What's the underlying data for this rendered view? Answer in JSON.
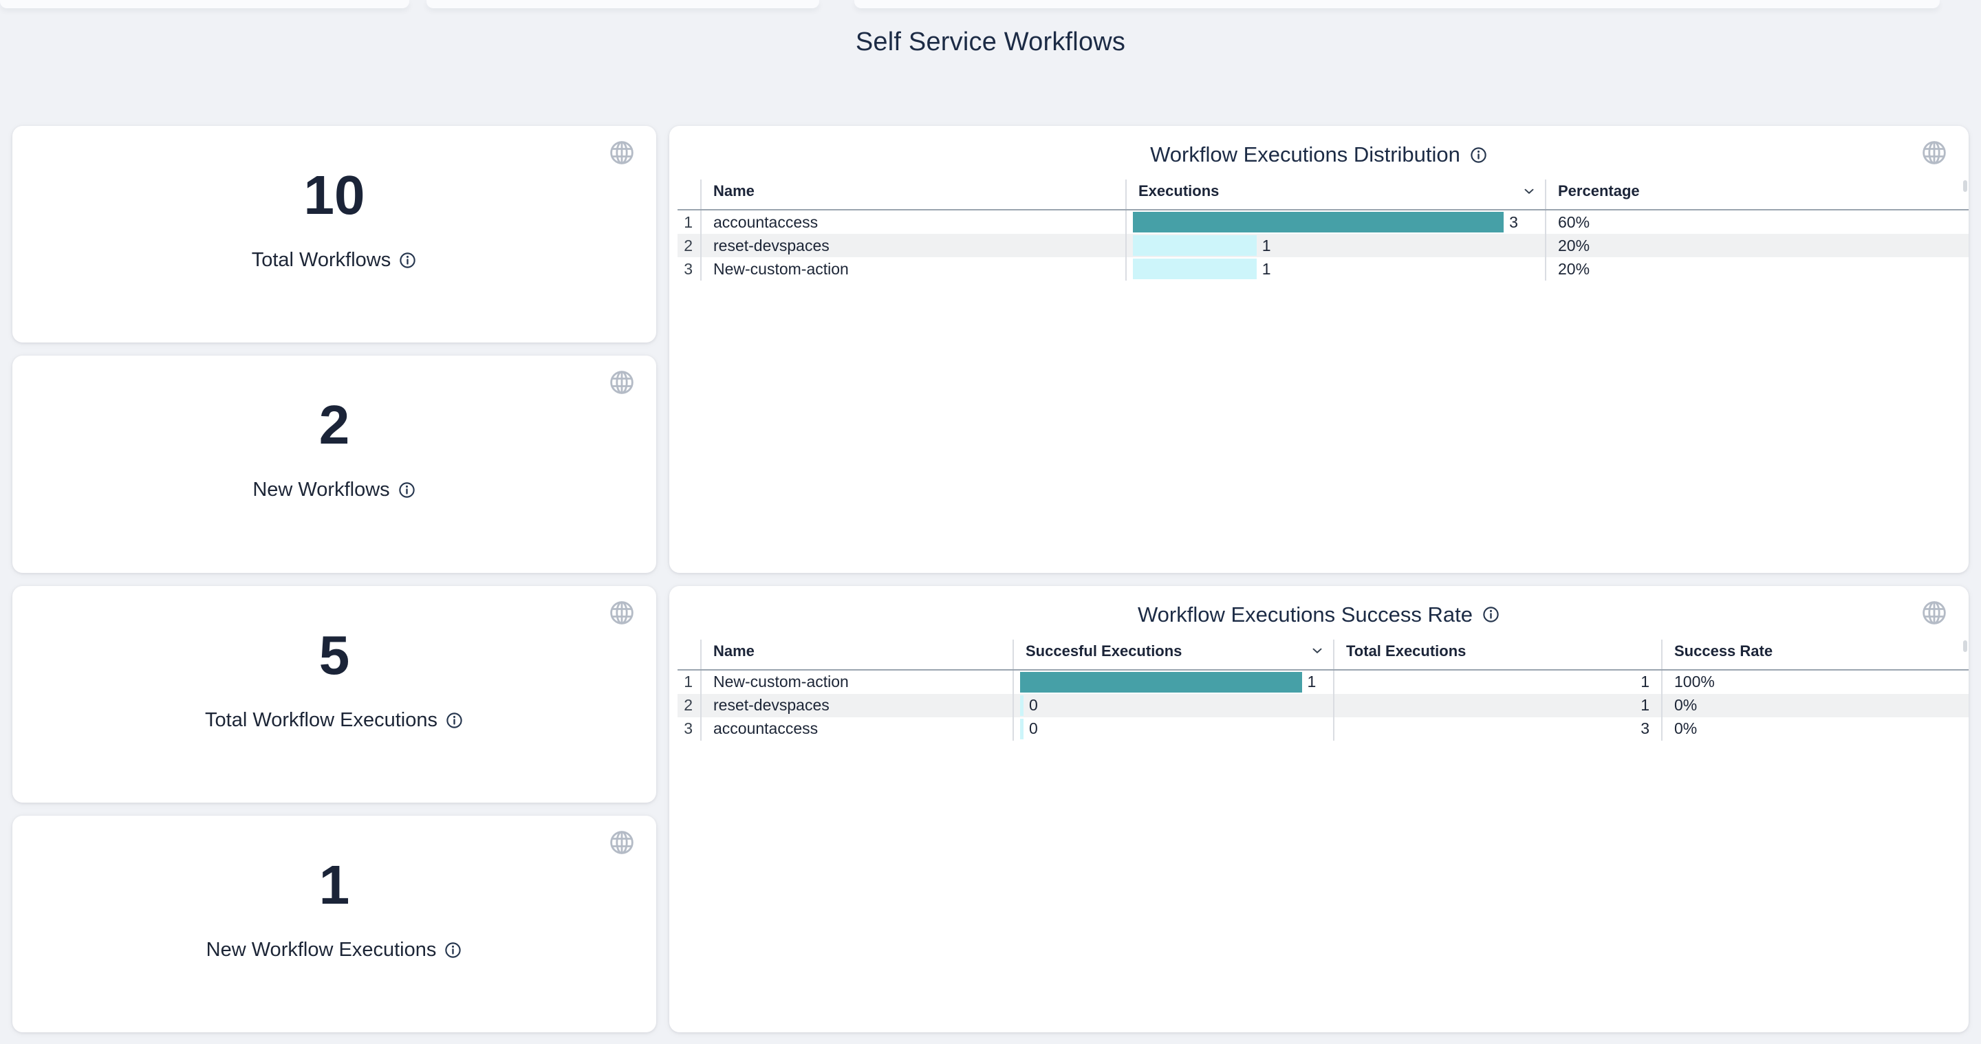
{
  "page": {
    "title": "Self Service Workflows"
  },
  "colors": {
    "teal": "#46A0A7",
    "light_cyan": "#CDF5FA",
    "navy": "#1C2536",
    "page_bg": "#F0F2F6",
    "zebra_row": "#F0F1F2",
    "header_rule": "#9AA4AF"
  },
  "icons": {
    "globe": "wireframe-globe",
    "info": "circled-i",
    "sort": "chevron-down"
  },
  "stat_cards": [
    {
      "value": "10",
      "label": "Total Workflows"
    },
    {
      "value": "2",
      "label": "New Workflows"
    },
    {
      "value": "5",
      "label": "Total Workflow Executions"
    },
    {
      "value": "1",
      "label": "New Workflow Executions"
    }
  ],
  "tables": [
    {
      "title": "Workflow Executions Distribution",
      "columns": [
        "Name",
        "Executions",
        "Percentage"
      ],
      "sorted_by": "Executions",
      "rows": [
        {
          "index": "1",
          "name": "accountaccess",
          "executions": 3,
          "executions_label": "3",
          "percentage": "60%"
        },
        {
          "index": "2",
          "name": "reset-devspaces",
          "executions": 1,
          "executions_label": "1",
          "percentage": "20%"
        },
        {
          "index": "3",
          "name": "New-custom-action",
          "executions": 1,
          "executions_label": "1",
          "percentage": "20%"
        }
      ]
    },
    {
      "title": "Workflow Executions Success Rate",
      "columns": [
        "Name",
        "Succesful Executions",
        "Total Executions",
        "Success Rate"
      ],
      "sorted_by": "Succesful Executions",
      "rows": [
        {
          "index": "1",
          "name": "New-custom-action",
          "successful": 1,
          "successful_label": "1",
          "total": "1",
          "rate": "100%"
        },
        {
          "index": "2",
          "name": "reset-devspaces",
          "successful": 0,
          "successful_label": "0",
          "total": "1",
          "rate": "0%"
        },
        {
          "index": "3",
          "name": "accountaccess",
          "successful": 0,
          "successful_label": "0",
          "total": "3",
          "rate": "0%"
        }
      ]
    }
  ],
  "chart_data": [
    {
      "type": "table",
      "title": "Workflow Executions Distribution",
      "columns": [
        "Name",
        "Executions",
        "Percentage"
      ],
      "bar_column": "Executions",
      "bar_max": 3,
      "rows": [
        [
          "accountaccess",
          3,
          "60%"
        ],
        [
          "reset-devspaces",
          1,
          "20%"
        ],
        [
          "New-custom-action",
          1,
          "20%"
        ]
      ]
    },
    {
      "type": "table",
      "title": "Workflow Executions Success Rate",
      "columns": [
        "Name",
        "Succesful Executions",
        "Total Executions",
        "Success Rate"
      ],
      "bar_column": "Succesful Executions",
      "bar_max": 1,
      "rows": [
        [
          "New-custom-action",
          1,
          1,
          "100%"
        ],
        [
          "reset-devspaces",
          0,
          1,
          "0%"
        ],
        [
          "accountaccess",
          0,
          3,
          "0%"
        ]
      ]
    }
  ]
}
